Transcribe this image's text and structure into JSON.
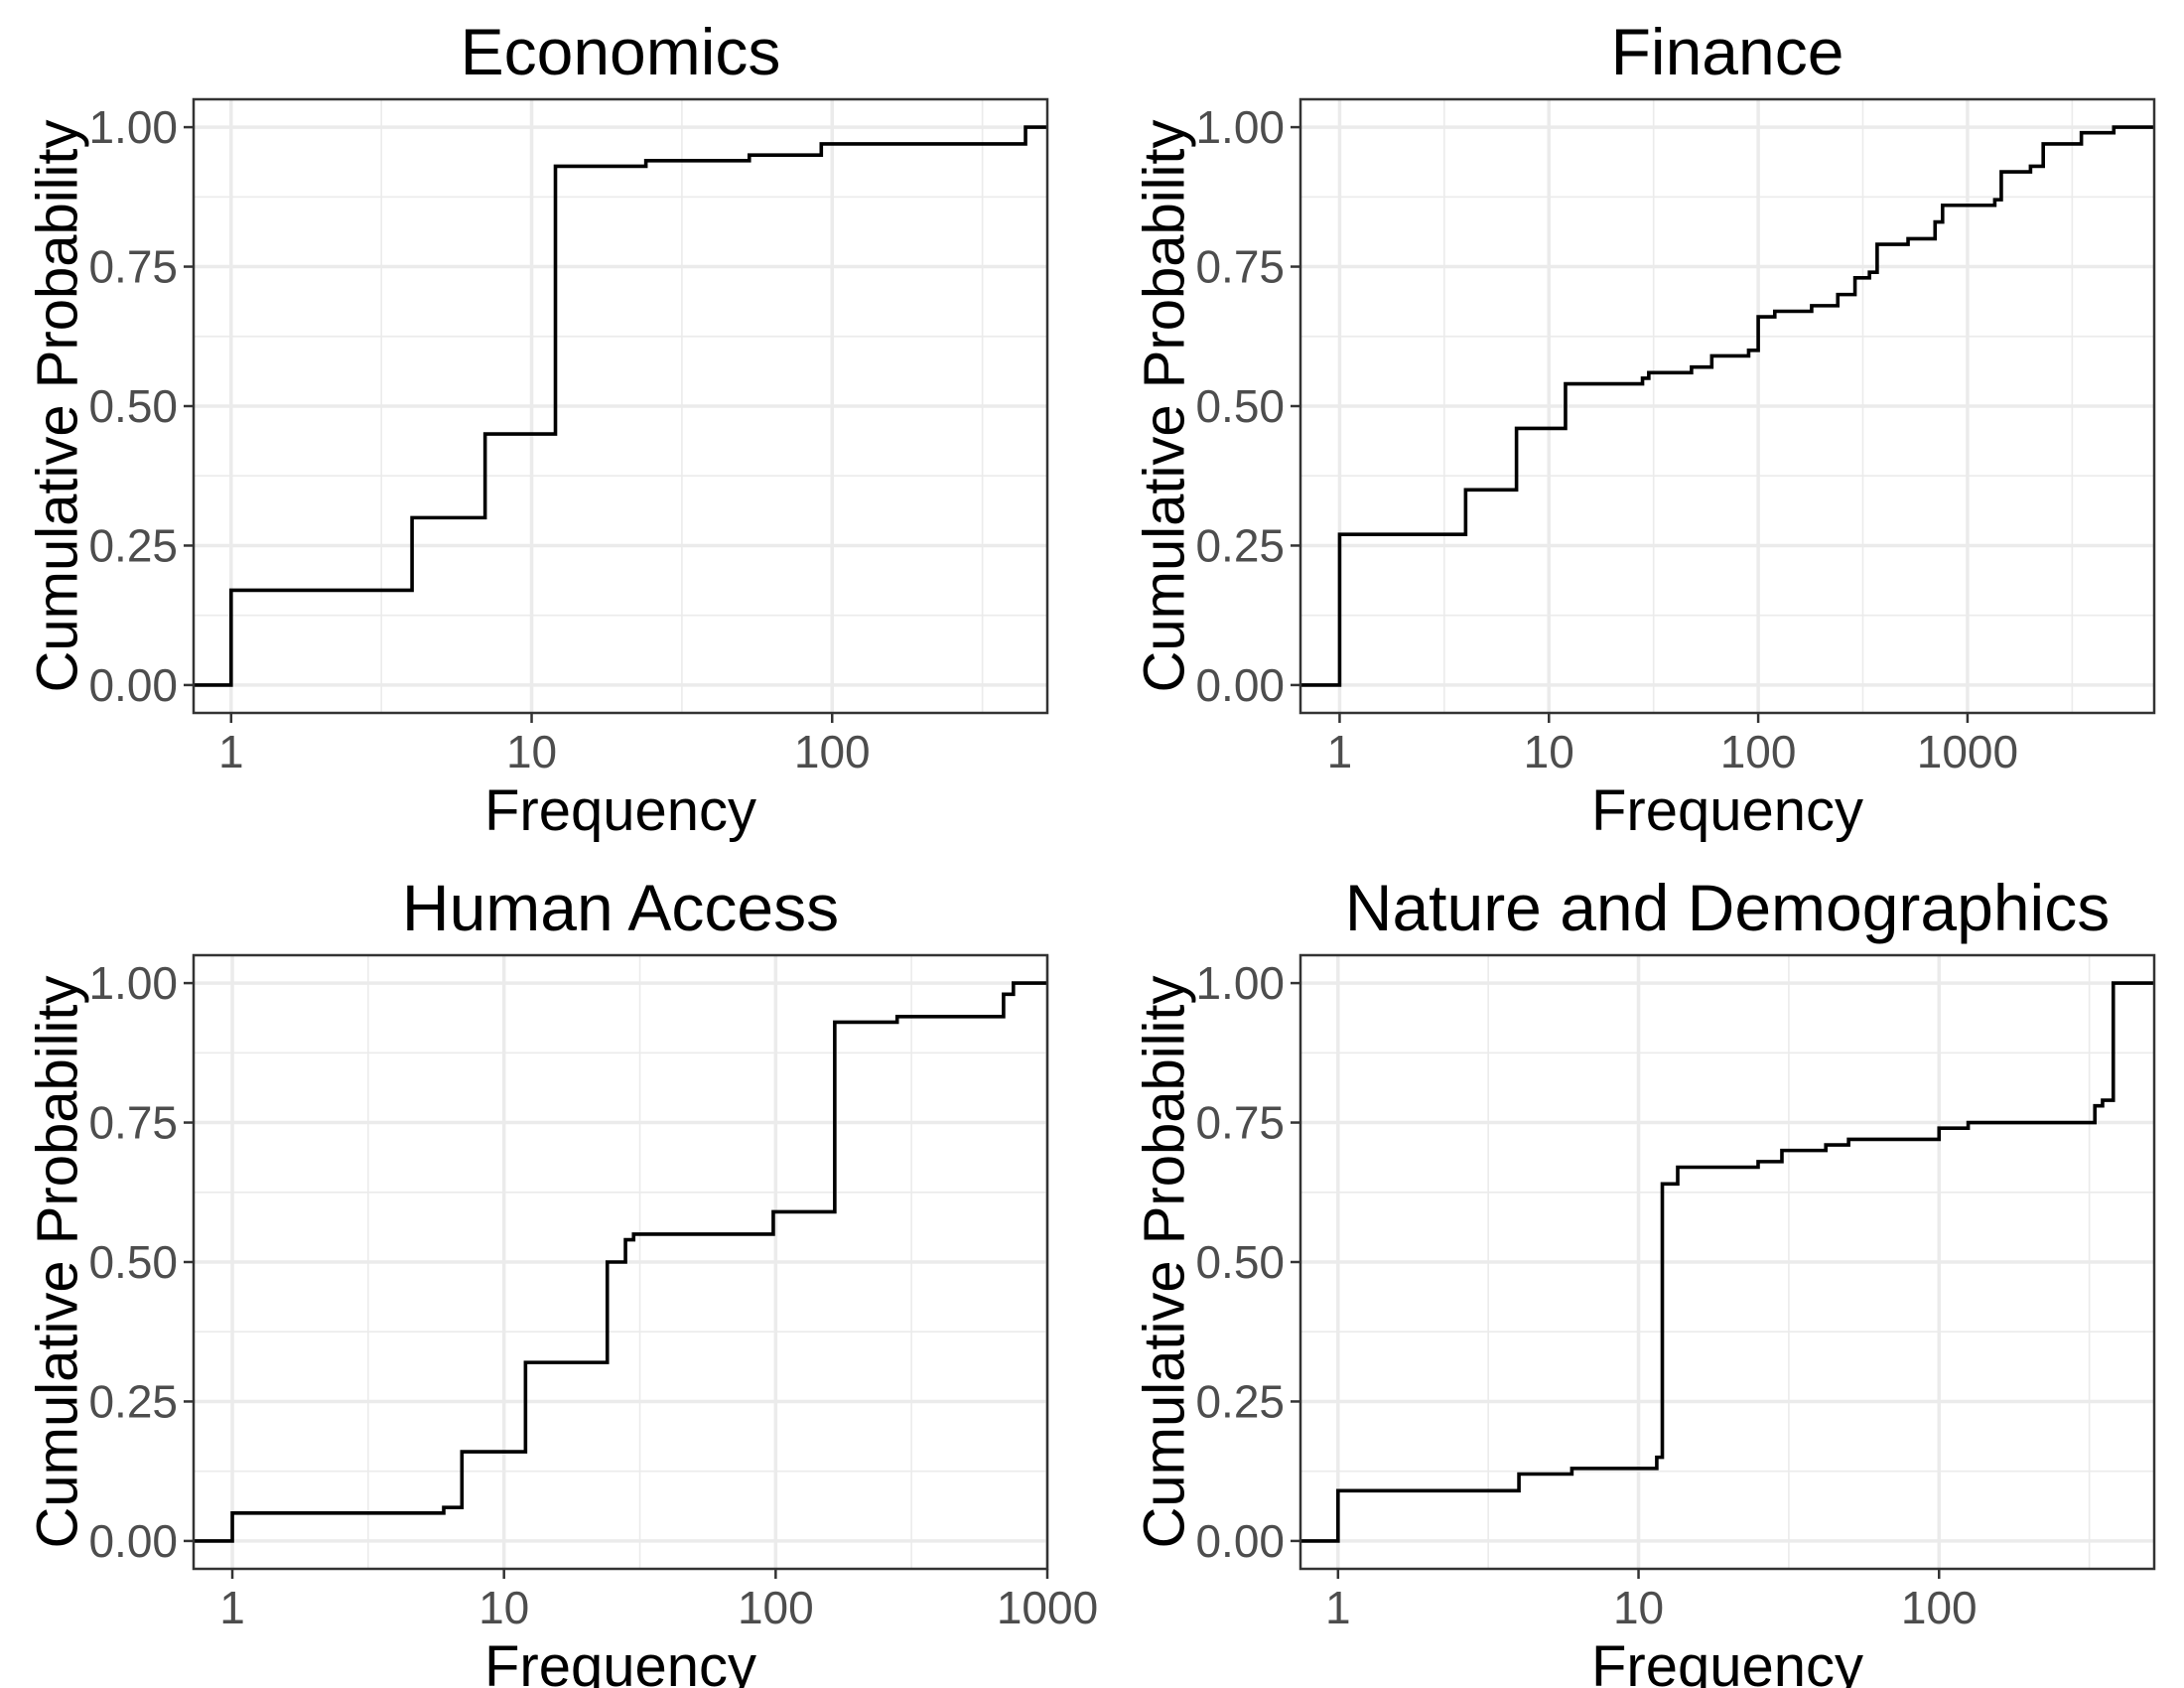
{
  "chart_data": [
    {
      "type": "step",
      "title": "Economics",
      "xlabel": "Frequency",
      "ylabel": "Cumulative Probability",
      "x_scale": "log10",
      "xlim": [
        0.75,
        520
      ],
      "ylim": [
        -0.05,
        1.05
      ],
      "x_ticks": [
        1,
        10,
        100
      ],
      "x_tick_labels": [
        "1",
        "10",
        "100"
      ],
      "y_ticks": [
        0,
        0.25,
        0.5,
        0.75,
        1
      ],
      "y_tick_labels": [
        "0.00",
        "0.25",
        "0.50",
        "0.75",
        "1.00"
      ],
      "grid": true,
      "steps": [
        [
          1,
          0.17
        ],
        [
          4,
          0.3
        ],
        [
          7,
          0.45
        ],
        [
          12,
          0.93
        ],
        [
          24,
          0.94
        ],
        [
          53,
          0.95
        ],
        [
          92,
          0.97
        ],
        [
          440,
          1.0
        ]
      ]
    },
    {
      "type": "step",
      "title": "Finance",
      "xlabel": "Frequency",
      "ylabel": "Cumulative Probability",
      "x_scale": "log10",
      "xlim": [
        0.65,
        7800
      ],
      "ylim": [
        -0.05,
        1.05
      ],
      "x_ticks": [
        1,
        10,
        100,
        1000
      ],
      "x_tick_labels": [
        "1",
        "10",
        "100",
        "1000"
      ],
      "y_ticks": [
        0,
        0.25,
        0.5,
        0.75,
        1
      ],
      "y_tick_labels": [
        "0.00",
        "0.25",
        "0.50",
        "0.75",
        "1.00"
      ],
      "grid": true,
      "steps": [
        [
          1,
          0.27
        ],
        [
          4,
          0.35
        ],
        [
          7,
          0.46
        ],
        [
          12,
          0.54
        ],
        [
          28,
          0.55
        ],
        [
          30,
          0.56
        ],
        [
          48,
          0.57
        ],
        [
          60,
          0.59
        ],
        [
          90,
          0.6
        ],
        [
          100,
          0.66
        ],
        [
          120,
          0.67
        ],
        [
          180,
          0.68
        ],
        [
          240,
          0.7
        ],
        [
          290,
          0.73
        ],
        [
          340,
          0.74
        ],
        [
          370,
          0.79
        ],
        [
          520,
          0.8
        ],
        [
          700,
          0.83
        ],
        [
          760,
          0.86
        ],
        [
          1350,
          0.87
        ],
        [
          1450,
          0.92
        ],
        [
          2000,
          0.93
        ],
        [
          2300,
          0.97
        ],
        [
          3500,
          0.99
        ],
        [
          5000,
          1.0
        ]
      ]
    },
    {
      "type": "step",
      "title": "Human Access",
      "xlabel": "Frequency",
      "ylabel": "Cumulative Probability",
      "x_scale": "log10",
      "xlim": [
        0.72,
        1000
      ],
      "ylim": [
        -0.05,
        1.05
      ],
      "x_ticks": [
        1,
        10,
        100,
        1000
      ],
      "x_tick_labels": [
        "1",
        "10",
        "100",
        "1000"
      ],
      "y_ticks": [
        0,
        0.25,
        0.5,
        0.75,
        1
      ],
      "y_tick_labels": [
        "0.00",
        "0.25",
        "0.50",
        "0.75",
        "1.00"
      ],
      "grid": true,
      "steps": [
        [
          1,
          0.05
        ],
        [
          6,
          0.06
        ],
        [
          7,
          0.16
        ],
        [
          12,
          0.32
        ],
        [
          24,
          0.5
        ],
        [
          28,
          0.54
        ],
        [
          30,
          0.55
        ],
        [
          98,
          0.59
        ],
        [
          165,
          0.93
        ],
        [
          280,
          0.94
        ],
        [
          690,
          0.98
        ],
        [
          750,
          1.0
        ]
      ]
    },
    {
      "type": "step",
      "title": "Nature and Demographics",
      "xlabel": "Frequency",
      "ylabel": "Cumulative Probability",
      "x_scale": "log10",
      "xlim": [
        0.75,
        520
      ],
      "ylim": [
        -0.05,
        1.05
      ],
      "x_ticks": [
        1,
        10,
        100
      ],
      "x_tick_labels": [
        "1",
        "10",
        "100"
      ],
      "y_ticks": [
        0,
        0.25,
        0.5,
        0.75,
        1
      ],
      "y_tick_labels": [
        "0.00",
        "0.25",
        "0.50",
        "0.75",
        "1.00"
      ],
      "grid": true,
      "steps": [
        [
          1,
          0.09
        ],
        [
          4,
          0.12
        ],
        [
          6,
          0.13
        ],
        [
          11.5,
          0.15
        ],
        [
          12,
          0.64
        ],
        [
          13.5,
          0.67
        ],
        [
          25,
          0.68
        ],
        [
          30,
          0.7
        ],
        [
          42,
          0.71
        ],
        [
          50,
          0.72
        ],
        [
          100,
          0.74
        ],
        [
          125,
          0.75
        ],
        [
          330,
          0.78
        ],
        [
          350,
          0.79
        ],
        [
          380,
          1.0
        ]
      ]
    }
  ]
}
